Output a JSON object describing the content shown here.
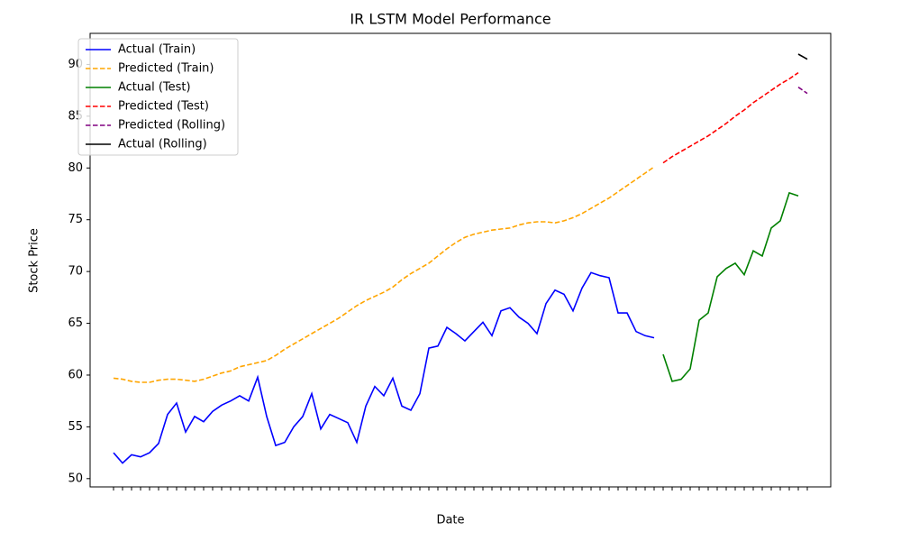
{
  "chart_data": {
    "type": "line",
    "title": "IR LSTM Model Performance",
    "x_label": "Date",
    "y_label": "Stock Price",
    "categories": [
      null,
      null,
      null,
      null,
      null,
      null,
      null,
      null,
      null,
      null,
      null,
      null,
      null,
      null,
      null,
      null,
      null,
      null,
      null,
      null,
      null,
      null,
      null,
      null,
      null,
      null,
      null,
      null,
      null,
      null,
      null,
      null,
      null,
      null,
      null,
      null,
      null,
      null,
      null,
      null,
      null,
      null,
      null,
      null,
      null,
      null,
      null,
      null,
      null,
      null,
      null,
      null,
      null,
      null,
      null,
      null,
      null,
      null,
      null,
      null,
      null,
      null,
      null,
      null,
      null,
      null,
      null,
      null,
      null,
      null,
      null,
      null,
      null,
      null,
      null,
      null,
      null,
      null
    ],
    "ylim": [
      49.2,
      93
    ],
    "yticks": [
      50,
      55,
      60,
      65,
      70,
      75,
      80,
      85,
      90
    ],
    "grid": false,
    "legend": "upper left",
    "series": [
      {
        "name": "Actual (Train)",
        "color": "#0000ff",
        "linestyle": "solid",
        "values": [
          52.5,
          51.5,
          52.3,
          52.1,
          52.5,
          53.4,
          56.2,
          57.3,
          54.5,
          56.0,
          55.5,
          56.5,
          57.1,
          57.5,
          58.0,
          57.5,
          59.8,
          56.0,
          53.2,
          53.5,
          55.0,
          56.0,
          58.2,
          54.8,
          56.2,
          55.8,
          55.4,
          53.5,
          57.0,
          58.9,
          58.0,
          59.7,
          57.0,
          56.6,
          58.2,
          62.6,
          62.8,
          64.6,
          64.0,
          63.3,
          64.2,
          65.1,
          63.8,
          66.2,
          66.5,
          65.6,
          65.0,
          64.0,
          66.9,
          68.2,
          67.8,
          66.2,
          68.4,
          69.9,
          69.6,
          69.4,
          66.0,
          66.0,
          64.2,
          63.8,
          63.6,
          null,
          null,
          null,
          null,
          null,
          null,
          null,
          null,
          null,
          null,
          null,
          null,
          null,
          null,
          null,
          null,
          null
        ]
      },
      {
        "name": "Predicted (Train)",
        "color": "#ffa500",
        "linestyle": "dashed",
        "values": [
          59.7,
          59.6,
          59.4,
          59.3,
          59.3,
          59.5,
          59.6,
          59.6,
          59.5,
          59.4,
          59.6,
          59.9,
          60.2,
          60.4,
          60.8,
          61.0,
          61.2,
          61.4,
          61.9,
          62.5,
          63.0,
          63.5,
          64.0,
          64.5,
          65.0,
          65.5,
          66.1,
          66.7,
          67.2,
          67.6,
          68.0,
          68.5,
          69.2,
          69.8,
          70.3,
          70.8,
          71.5,
          72.2,
          72.8,
          73.3,
          73.6,
          73.8,
          74.0,
          74.1,
          74.2,
          74.5,
          74.7,
          74.8,
          74.8,
          74.7,
          74.9,
          75.2,
          75.6,
          76.1,
          76.6,
          77.1,
          77.7,
          78.3,
          78.9,
          79.5,
          80.1,
          null,
          null,
          null,
          null,
          null,
          null,
          null,
          null,
          null,
          null,
          null,
          null,
          null,
          null,
          null,
          null,
          null
        ]
      },
      {
        "name": "Actual (Test)",
        "color": "#008000",
        "linestyle": "solid",
        "values": [
          null,
          null,
          null,
          null,
          null,
          null,
          null,
          null,
          null,
          null,
          null,
          null,
          null,
          null,
          null,
          null,
          null,
          null,
          null,
          null,
          null,
          null,
          null,
          null,
          null,
          null,
          null,
          null,
          null,
          null,
          null,
          null,
          null,
          null,
          null,
          null,
          null,
          null,
          null,
          null,
          null,
          null,
          null,
          null,
          null,
          null,
          null,
          null,
          null,
          null,
          null,
          null,
          null,
          null,
          null,
          null,
          null,
          null,
          null,
          null,
          null,
          62.0,
          59.4,
          59.6,
          60.6,
          65.3,
          66.0,
          69.5,
          70.3,
          70.8,
          69.7,
          72.0,
          71.5,
          74.2,
          74.9,
          77.6,
          77.3,
          null
        ]
      },
      {
        "name": "Predicted (Test)",
        "color": "#ff0000",
        "linestyle": "dashed",
        "values": [
          null,
          null,
          null,
          null,
          null,
          null,
          null,
          null,
          null,
          null,
          null,
          null,
          null,
          null,
          null,
          null,
          null,
          null,
          null,
          null,
          null,
          null,
          null,
          null,
          null,
          null,
          null,
          null,
          null,
          null,
          null,
          null,
          null,
          null,
          null,
          null,
          null,
          null,
          null,
          null,
          null,
          null,
          null,
          null,
          null,
          null,
          null,
          null,
          null,
          null,
          null,
          null,
          null,
          null,
          null,
          null,
          null,
          null,
          null,
          null,
          null,
          80.5,
          81.1,
          81.6,
          82.1,
          82.6,
          83.1,
          83.7,
          84.3,
          85.0,
          85.6,
          86.3,
          86.9,
          87.5,
          88.1,
          88.6,
          89.2,
          null
        ]
      },
      {
        "name": "Predicted (Rolling)",
        "color": "#800080",
        "linestyle": "dashed",
        "values": [
          null,
          null,
          null,
          null,
          null,
          null,
          null,
          null,
          null,
          null,
          null,
          null,
          null,
          null,
          null,
          null,
          null,
          null,
          null,
          null,
          null,
          null,
          null,
          null,
          null,
          null,
          null,
          null,
          null,
          null,
          null,
          null,
          null,
          null,
          null,
          null,
          null,
          null,
          null,
          null,
          null,
          null,
          null,
          null,
          null,
          null,
          null,
          null,
          null,
          null,
          null,
          null,
          null,
          null,
          null,
          null,
          null,
          null,
          null,
          null,
          null,
          null,
          null,
          null,
          null,
          null,
          null,
          null,
          null,
          null,
          null,
          null,
          null,
          null,
          null,
          null,
          87.8,
          87.2
        ]
      },
      {
        "name": "Actual (Rolling)",
        "color": "#000000",
        "linestyle": "solid",
        "values": [
          null,
          null,
          null,
          null,
          null,
          null,
          null,
          null,
          null,
          null,
          null,
          null,
          null,
          null,
          null,
          null,
          null,
          null,
          null,
          null,
          null,
          null,
          null,
          null,
          null,
          null,
          null,
          null,
          null,
          null,
          null,
          null,
          null,
          null,
          null,
          null,
          null,
          null,
          null,
          null,
          null,
          null,
          null,
          null,
          null,
          null,
          null,
          null,
          null,
          null,
          null,
          null,
          null,
          null,
          null,
          null,
          null,
          null,
          null,
          null,
          null,
          null,
          null,
          null,
          null,
          null,
          null,
          null,
          null,
          null,
          null,
          null,
          null,
          null,
          null,
          null,
          91.0,
          90.5
        ]
      }
    ]
  }
}
